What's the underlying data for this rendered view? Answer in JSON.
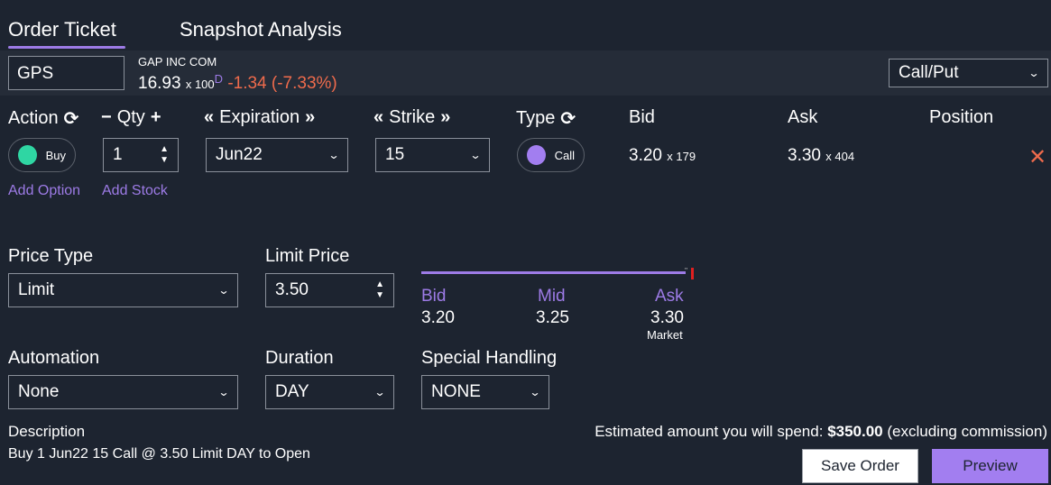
{
  "tabs": [
    {
      "label": "Order Ticket",
      "active": true
    },
    {
      "label": "Snapshot Analysis",
      "active": false
    }
  ],
  "symbol": {
    "value": "GPS",
    "security_name": "GAP INC COM",
    "last_price": "16.93",
    "multiplier": "x 100",
    "delayed_flag": "D",
    "change": "-1.34 (-7.33%)",
    "change_color": "#ef6b4c"
  },
  "strategy_select": {
    "value": "Call/Put"
  },
  "leg_headers": {
    "action": "Action",
    "qty": "Qty",
    "expiration": "Expiration",
    "strike": "Strike",
    "type": "Type",
    "bid": "Bid",
    "ask": "Ask",
    "position": "Position"
  },
  "leg": {
    "action": "Buy",
    "action_color": "#2fd6a3",
    "qty": "1",
    "expiration": "Jun22",
    "strike": "15",
    "type": "Call",
    "type_color": "#a27ef0",
    "bid_price": "3.20",
    "bid_size": "x 179",
    "ask_price": "3.30",
    "ask_size": "x 404"
  },
  "links": {
    "add_option": "Add Option",
    "add_stock": "Add Stock"
  },
  "price_type": {
    "label": "Price Type",
    "value": "Limit"
  },
  "limit_price": {
    "label": "Limit Price",
    "value": "3.50"
  },
  "range": {
    "bid_label": "Bid",
    "bid_value": "3.20",
    "mid_label": "Mid",
    "mid_value": "3.25",
    "ask_label": "Ask",
    "ask_value": "3.30",
    "market_label": "Market"
  },
  "automation": {
    "label": "Automation",
    "value": "None"
  },
  "duration": {
    "label": "Duration",
    "value": "DAY"
  },
  "special_handling": {
    "label": "Special Handling",
    "value": "NONE"
  },
  "description": {
    "label": "Description",
    "text": "Buy 1 Jun22 15 Call @ 3.50 Limit DAY to Open"
  },
  "estimate": {
    "prefix": "Estimated amount you will spend:",
    "amount": "$350.00",
    "suffix": "(excluding commission)"
  },
  "buttons": {
    "save_order": "Save Order",
    "preview": "Preview"
  },
  "colors": {
    "accent": "#9d7be6",
    "background": "#1d2430",
    "negative": "#ef6b4c"
  }
}
